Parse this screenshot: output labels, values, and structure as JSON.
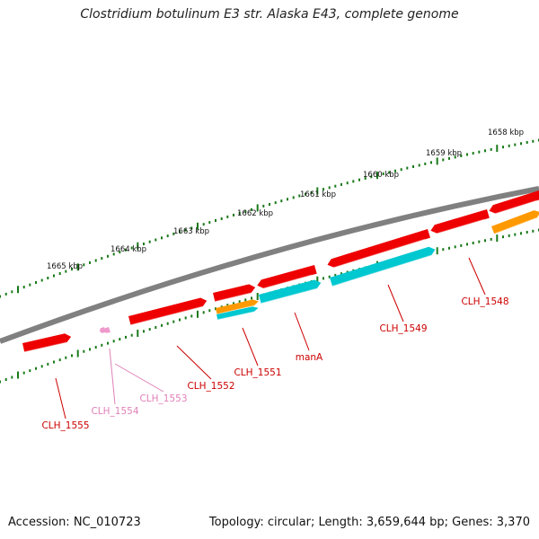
{
  "title": "Clostridium botulinum E3 str. Alaska E43, complete genome",
  "footer": {
    "accession": "Accession: NC_010723",
    "topology": "Topology: circular; Length: 3,659,644 bp; Genes: 3,370"
  },
  "colors": {
    "backbone": "#808080",
    "cds": "#ee0000",
    "cds_pseudo": "#ee99cc",
    "trna": "#ff9900",
    "mrna": "#00c8d0",
    "ticks": "#1a7a1a",
    "label_red": "#cc0000",
    "label_pink": "#e080b8"
  },
  "kbp_labels": [
    "1665 kbp",
    "1664 kbp",
    "1663 kbp",
    "1662 kbp",
    "1661 kbp",
    "1660 kbp",
    "1659 kbp",
    "1658 kbp"
  ],
  "genes": [
    {
      "name": "CLH_1555"
    },
    {
      "name": "CLH_1554"
    },
    {
      "name": "CLH_1553"
    },
    {
      "name": "CLH_1552"
    },
    {
      "name": "CLH_1551"
    },
    {
      "name": "manA"
    },
    {
      "name": "CLH_1549"
    },
    {
      "name": "CLH_1548"
    }
  ]
}
